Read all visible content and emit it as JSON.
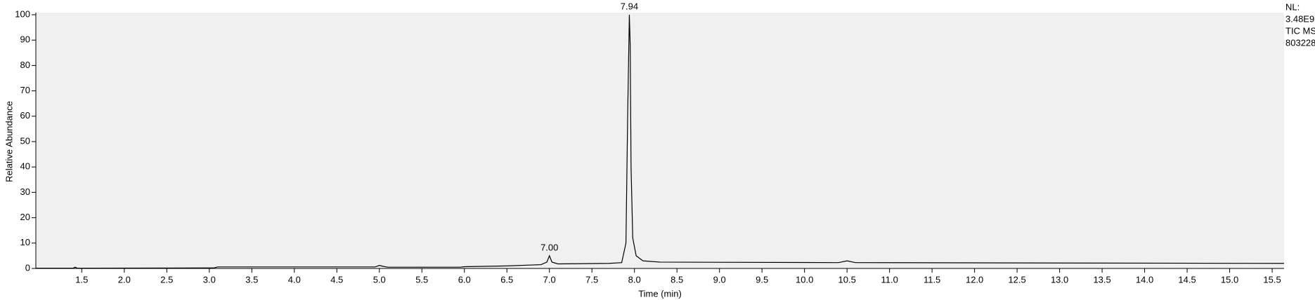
{
  "chart_data": {
    "type": "line",
    "x_label": "Time (min)",
    "y_label": "Relative Abundance",
    "header_notes": [
      "NL:",
      "3.48E9",
      "TIC  MS",
      "803228"
    ],
    "x": [
      0.96,
      1.4,
      1.42,
      1.45,
      3.05,
      3.1,
      4.95,
      5.0,
      5.05,
      5.1,
      5.95,
      6.0,
      6.5,
      6.9,
      6.97,
      7.0,
      7.03,
      7.1,
      7.7,
      7.85,
      7.9,
      7.92,
      7.94,
      7.95,
      7.96,
      7.98,
      8.02,
      8.1,
      8.3,
      10.4,
      10.5,
      10.6,
      15.64
    ],
    "values": [
      0.1,
      0.1,
      0.5,
      0.1,
      0.2,
      0.6,
      0.6,
      1.2,
      0.8,
      0.5,
      0.5,
      0.7,
      1.0,
      1.5,
      2.5,
      5,
      2.5,
      1.8,
      2.0,
      2.3,
      10,
      60,
      100,
      88,
      40,
      12,
      5,
      3,
      2.5,
      2.3,
      3,
      2.3,
      2.0
    ],
    "color": "#000000",
    "annotations": [
      {
        "x": 7.94,
        "y": 100,
        "label": "7.94"
      },
      {
        "x": 7.0,
        "y": 5,
        "label": "7.00"
      }
    ],
    "xlim": [
      0.96,
      15.64
    ],
    "xticks": [
      1.5,
      {
        "value": 2,
        "label": "2.0"
      },
      2.5,
      {
        "value": 3,
        "label": "3.0"
      },
      3.5,
      {
        "value": 4,
        "label": "4.0"
      },
      4.5,
      {
        "value": 5,
        "label": "5.0"
      },
      5.5,
      {
        "value": 6,
        "label": "6.0"
      },
      6.5,
      {
        "value": 7,
        "label": "7.0"
      },
      7.5,
      {
        "value": 8,
        "label": "8.0"
      },
      8.5,
      {
        "value": 9,
        "label": "9.0"
      },
      9.5,
      {
        "value": 10,
        "label": "10.0"
      },
      10.5,
      {
        "value": 11,
        "label": "11.0"
      },
      11.5,
      {
        "value": 12,
        "label": "12.0"
      },
      12.5,
      {
        "value": 13,
        "label": "13.0"
      },
      13.5,
      {
        "value": 14,
        "label": "14.0"
      },
      14.5,
      {
        "value": 15,
        "label": "15.0"
      },
      15.5
    ],
    "ylim": [
      0,
      100
    ],
    "yticks": [
      0,
      10,
      20,
      30,
      40,
      50,
      60,
      70,
      80,
      90,
      100
    ],
    "plot_background": "#f0f0f0"
  }
}
